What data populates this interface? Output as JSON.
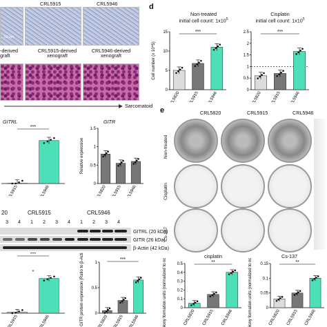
{
  "panel_d": {
    "letter": "d",
    "subtitle_left": "Non-treated",
    "subtitle_left2": "initial cell count: 1x10",
    "subtitle_right": "Cisplatin",
    "subtitle_right2": "initial cell count: 1x10",
    "exp": "5",
    "sig": "***"
  },
  "panel_e": {
    "letter": "e",
    "col_labels": [
      "CRL5820",
      "CRL5915",
      "CRL5946"
    ],
    "row_labels": [
      "Non-treated",
      "Cisplatin",
      "Cs-137"
    ],
    "title_cis": "cisplatin",
    "title_cs": "Cs-137",
    "sig": "**"
  },
  "top_left": {
    "scalebar": "50 um",
    "xeno1": "CRL5915-derived",
    "xeno1b": "xenograft",
    "xeno2": "CRL5946-derived",
    "xeno2b": "xenograft",
    "xeno0": "-derived",
    "xeno0b": "graft",
    "cell_titles": [
      "CRL5915",
      "CRL5946"
    ],
    "arrow_label": "Sarcomatoid"
  },
  "panel_b": {
    "gitrl": "GITRL",
    "gitr": "GITR",
    "sig": "***"
  },
  "blot": {
    "header_left": "20",
    "header_mid": "CRL5915",
    "header_right": "CRL5946",
    "lanes": [
      "3",
      "4",
      "1",
      "2",
      "3",
      "4",
      "1",
      "2",
      "3",
      "4"
    ],
    "bands": [
      "GITRL (20 kDa)",
      "GITR (26 kDa)",
      "β-Actin (42 kDa)"
    ]
  },
  "lower_left": {
    "sig_top": "***",
    "sig_star": "*",
    "ylabel": "GITR protein expression (Ratio to β-Actin)",
    "sig_right": "***"
  },
  "chart_data": [
    {
      "type": "bar",
      "id": "d-nontreated",
      "categories": [
        "CRL5820",
        "CRL5915",
        "CRL5946"
      ],
      "values": [
        5.0,
        6.8,
        11.0
      ],
      "ylabel": "Cell number (x 10^5)",
      "ylim": [
        0,
        15
      ],
      "yticks": [
        0,
        5,
        10,
        15
      ]
    },
    {
      "type": "bar",
      "id": "d-cisplatin",
      "categories": [
        "CRL5820",
        "CRL5915",
        "CRL5946"
      ],
      "values": [
        0.6,
        0.7,
        1.65
      ],
      "ylim": [
        0,
        2.5
      ],
      "yticks": [
        0,
        0.5,
        1.0,
        1.5,
        2.0,
        2.5
      ]
    },
    {
      "type": "bar",
      "id": "b-gitrl",
      "categories": [
        "CRL5915",
        "CRL5946"
      ],
      "values": [
        0.05,
        7.0
      ]
    },
    {
      "type": "bar",
      "id": "b-gitr",
      "categories": [
        "CRL5820",
        "CRL5915",
        "CRL5946"
      ],
      "values": [
        0.8,
        0.55,
        0.6
      ],
      "ylabel": "Relative expression",
      "ylim": [
        0,
        1.5
      ],
      "yticks": [
        0.0,
        0.5,
        1.0,
        1.5
      ]
    },
    {
      "type": "bar",
      "id": "c-gitrl-protein",
      "categories": [
        "CRL5915",
        "CRL5946"
      ],
      "values": [
        0.05,
        1.6
      ]
    },
    {
      "type": "bar",
      "id": "c-gitr-protein",
      "categories": [
        "CRL5820",
        "CRL5915",
        "CRL5946"
      ],
      "values": [
        0.05,
        0.25,
        0.65
      ],
      "ylabel": "GITR protein expression (Ratio to β-Actin)",
      "ylim": [
        0,
        1.0
      ],
      "yticks": [
        0.0,
        0.5,
        1.0
      ]
    },
    {
      "type": "bar",
      "id": "e-cisplatin",
      "categories": [
        "CRL5820",
        "CRL5915",
        "CRL5946"
      ],
      "values": [
        0.05,
        0.15,
        0.4
      ],
      "title": "cisplatin",
      "ylabel": "Colony formation units (normalized to non-treated)",
      "ylim": [
        0,
        0.5
      ],
      "yticks": [
        0.0,
        0.1,
        0.2,
        0.3,
        0.4,
        0.5
      ]
    },
    {
      "type": "bar",
      "id": "e-cs137",
      "categories": [
        "CRL5820",
        "CRL5915",
        "CRL5946"
      ],
      "values": [
        0.03,
        0.05,
        0.1
      ],
      "title": "Cs-137",
      "ylabel": "Colony formation units (normalized to non-treated)",
      "ylim": [
        0,
        0.15
      ],
      "yticks": [
        0.0,
        0.05,
        0.1,
        0.15
      ]
    }
  ]
}
